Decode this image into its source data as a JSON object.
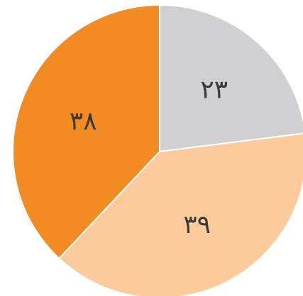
{
  "chart_data": {
    "type": "pie",
    "start_angle_deg": 0,
    "direction": "clockwise",
    "slices": [
      {
        "label": "٢٣",
        "value": 23,
        "color": "#d0d0d2"
      },
      {
        "label": "٣٩",
        "value": 39,
        "color": "#fdcb9b"
      },
      {
        "label": "٣٨",
        "value": 38,
        "color": "#f28b22"
      }
    ]
  }
}
